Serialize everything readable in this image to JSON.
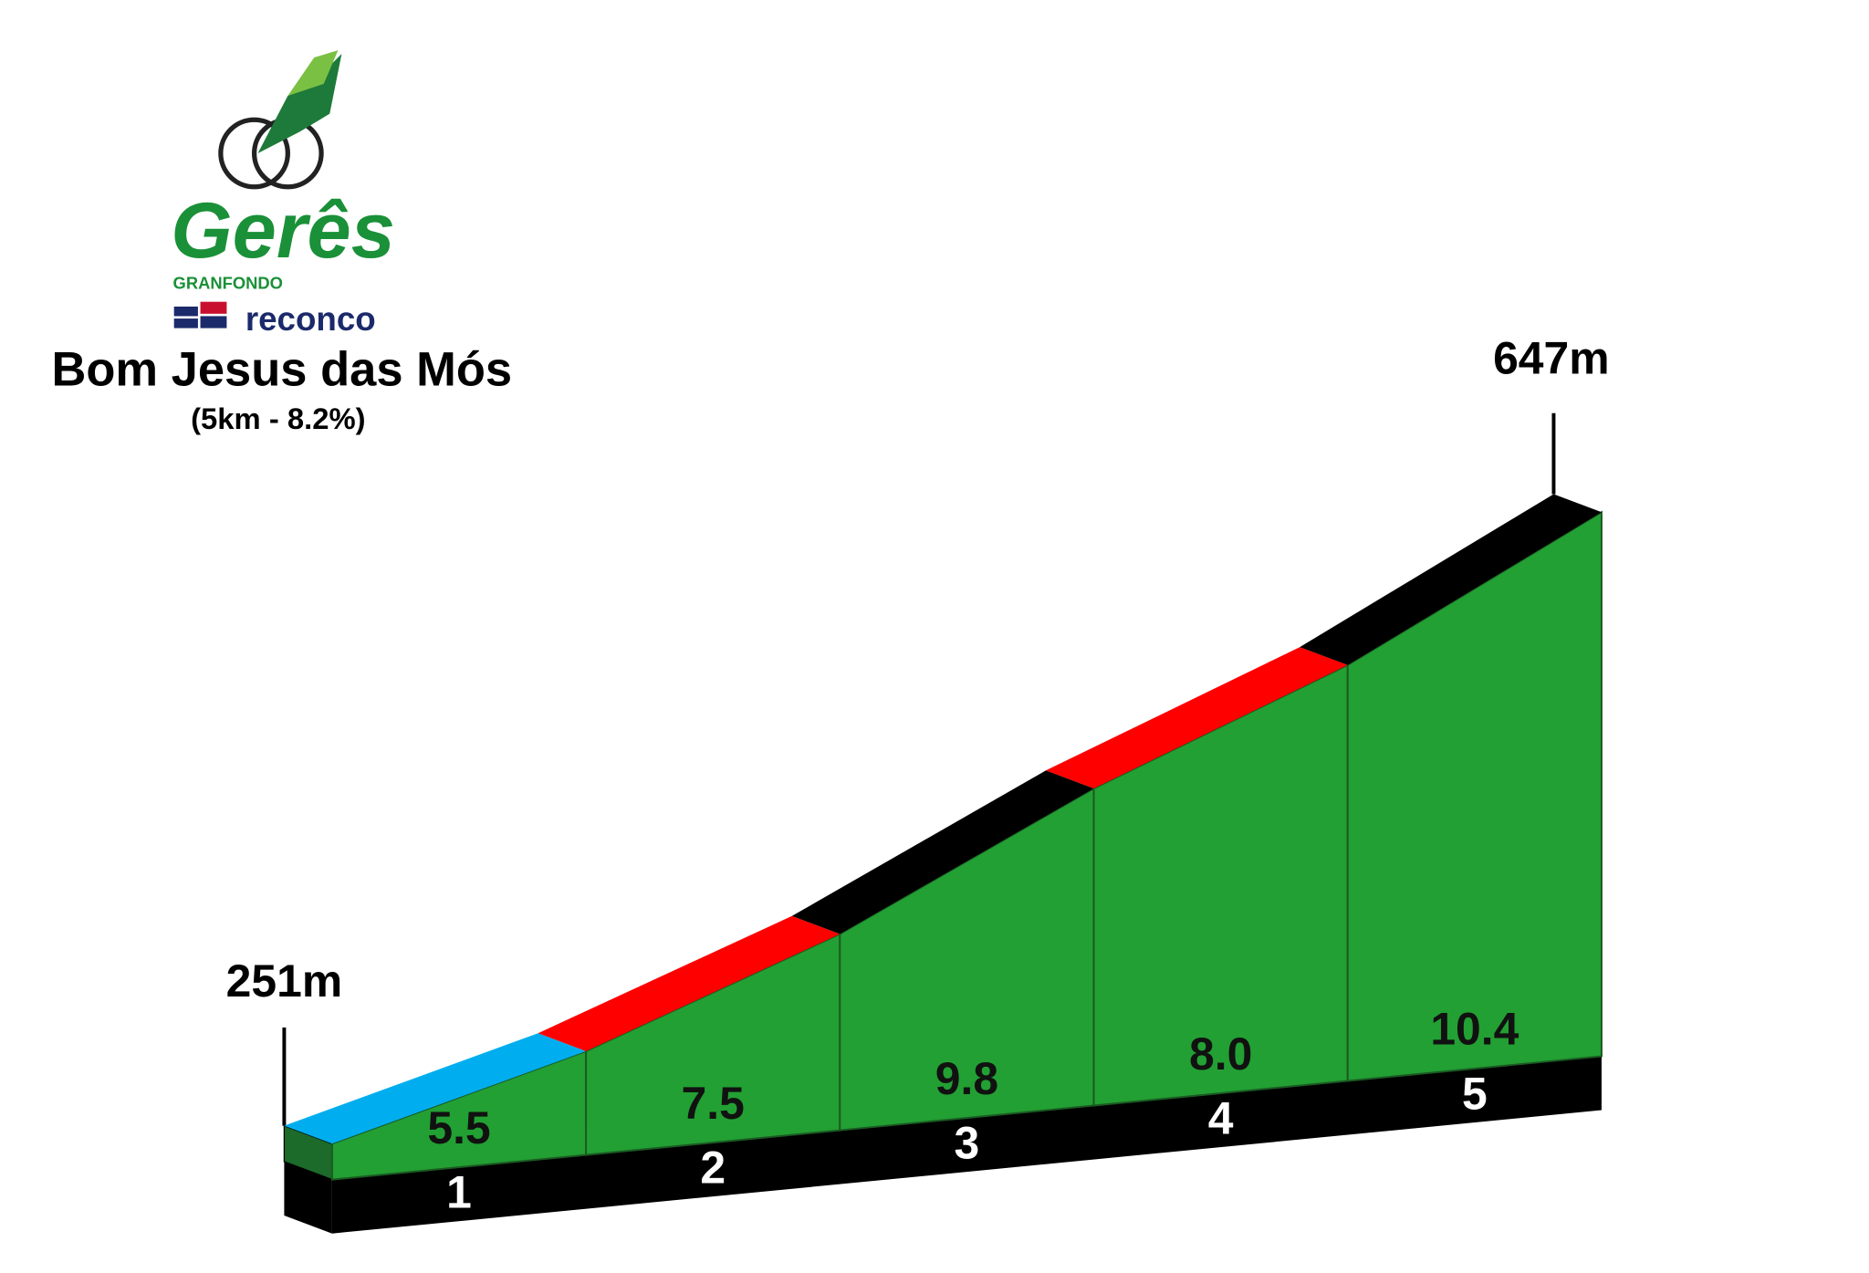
{
  "chart_data": {
    "type": "climb-profile",
    "title": "Bom Jesus das Mós",
    "subtitle": "(5km - 8.2%)",
    "logo": {
      "name": "Gerês",
      "tagline": "GRANFONDO",
      "sponsor": "reconco"
    },
    "start_label": "251m",
    "end_label": "647m",
    "categories": [
      "1",
      "2",
      "3",
      "4",
      "5"
    ],
    "values": [
      5.5,
      7.5,
      9.8,
      8.0,
      10.4
    ],
    "value_labels": [
      "5.5",
      "7.5",
      "9.8",
      "8.0",
      "10.4"
    ],
    "colors": [
      "#00aeef",
      "#ff0000",
      "#000000",
      "#ff0000",
      "#000000"
    ],
    "fill_color": "#22a033"
  }
}
